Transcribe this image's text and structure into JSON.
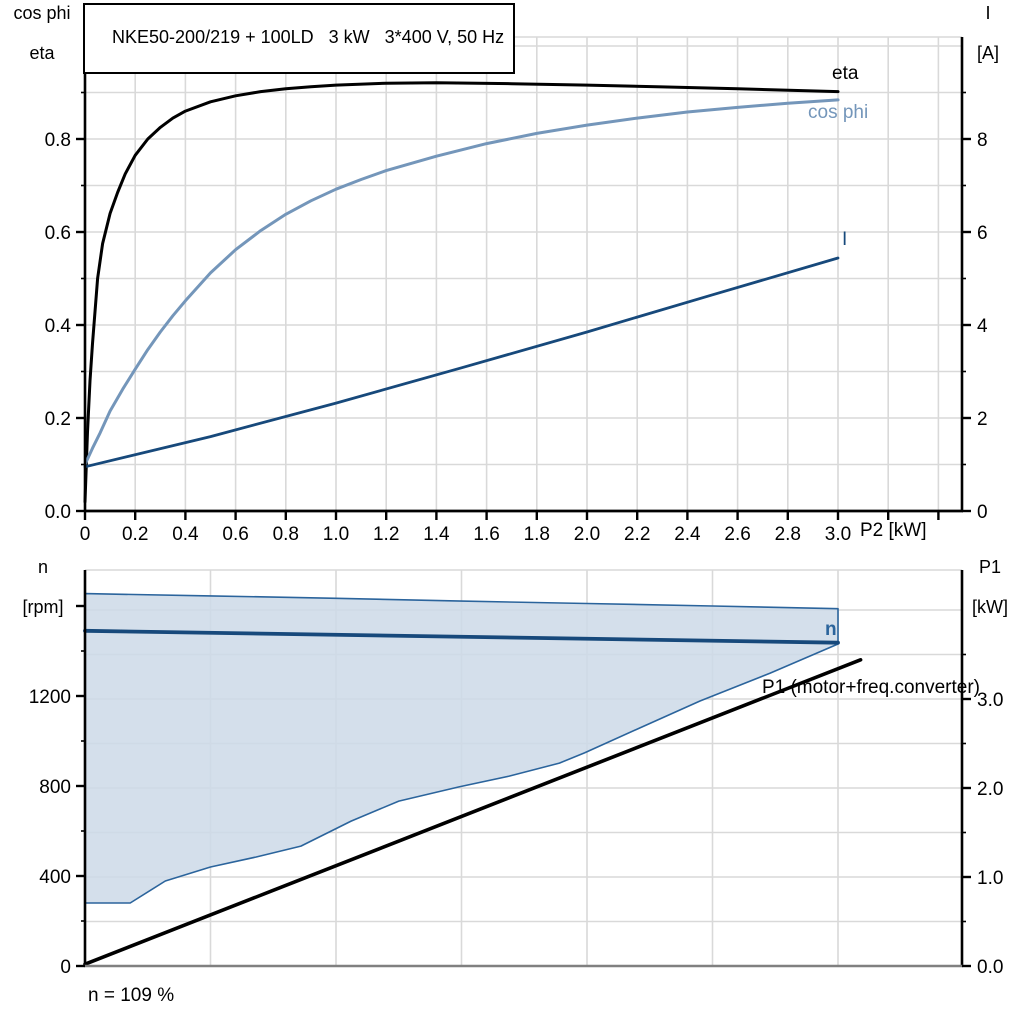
{
  "title": "NKE50-200/219 + 100LD   3 kW   3*400 V, 50 Hz",
  "colors": {
    "black": "#000000",
    "steel_blue": "#7496ba",
    "dark_blue": "#17497b",
    "mid_blue": "#2b649c",
    "band_fill": "#cdd9e7",
    "grid": "#d9d9d9",
    "axis_gray": "#808080"
  },
  "labels": {
    "top_left_line1": "cos phi",
    "top_left_line2": "eta",
    "top_right_line1": "I",
    "top_right_line2": "[A]",
    "x_axis": "P2 [kW]",
    "eta": "eta",
    "cos_phi": "cos phi",
    "current": "I",
    "bottom_left_line1": "n",
    "bottom_left_line2": "[rpm]",
    "bottom_right_line1": "P1",
    "bottom_right_line2": "[kW]",
    "n": "n",
    "p1": "P1 (motor+freq.converter)",
    "note": "n = 109 %"
  },
  "chart_data": [
    {
      "id": "top",
      "type": "line",
      "title": "NKE50-200/219 + 100LD   3 kW   3*400 V, 50 Hz",
      "xlabel": "P2 [kW]",
      "ylabel_left": "cos phi / eta",
      "ylabel_right": "I [A]",
      "xlim": [
        0,
        3.49
      ],
      "ylim_left": [
        0,
        0.98
      ],
      "ylim_right": [
        0,
        9.8
      ],
      "grid": true,
      "legend_position": "inline-right",
      "x_ticks": [
        0,
        0.2,
        0.4,
        0.6,
        0.8,
        1.0,
        1.2,
        1.4,
        1.6,
        1.8,
        2.0,
        2.2,
        2.4,
        2.6,
        2.8,
        3.0
      ],
      "x_tick_labels": [
        "0",
        "0.2",
        "0.4",
        "0.6",
        "0.8",
        "1.0",
        "1.2",
        "1.4",
        "1.6",
        "1.8",
        "2.0",
        "2.2",
        "2.4",
        "2.6",
        "2.8",
        "3.0"
      ],
      "x_ticks_unlabeled": [
        3.2,
        3.4
      ],
      "y_ticks_left": [
        0.0,
        0.2,
        0.4,
        0.6,
        0.8
      ],
      "y_tick_labels_left": [
        "0.0",
        "0.2",
        "0.4",
        "0.6",
        "0.8"
      ],
      "y_minor_left": [
        0.1,
        0.3,
        0.5,
        0.7,
        0.9
      ],
      "y_ticks_right": [
        0,
        2,
        4,
        6,
        8
      ],
      "y_tick_labels_right": [
        "0",
        "2",
        "4",
        "6",
        "8"
      ],
      "y_minor_right": [
        1,
        3,
        5,
        7,
        9
      ],
      "series": [
        {
          "name": "eta",
          "axis": "left",
          "color_key": "black",
          "width": 3,
          "x": [
            0,
            0.01,
            0.02,
            0.03,
            0.05,
            0.07,
            0.1,
            0.13,
            0.16,
            0.2,
            0.25,
            0.3,
            0.35,
            0.4,
            0.5,
            0.6,
            0.7,
            0.8,
            0.9,
            1.0,
            1.2,
            1.4,
            1.7,
            2.0,
            2.3,
            2.6,
            3.0
          ],
          "y": [
            0.02,
            0.17,
            0.28,
            0.36,
            0.5,
            0.575,
            0.64,
            0.685,
            0.725,
            0.765,
            0.8,
            0.825,
            0.845,
            0.86,
            0.88,
            0.893,
            0.902,
            0.908,
            0.9125,
            0.916,
            0.92,
            0.921,
            0.919,
            0.916,
            0.912,
            0.908,
            0.902
          ]
        },
        {
          "name": "cos phi",
          "axis": "left",
          "color_key": "steel_blue",
          "width": 3,
          "x": [
            0,
            0.03,
            0.06,
            0.1,
            0.15,
            0.2,
            0.25,
            0.3,
            0.35,
            0.4,
            0.5,
            0.6,
            0.7,
            0.8,
            0.9,
            1.0,
            1.1,
            1.2,
            1.4,
            1.6,
            1.8,
            2.0,
            2.2,
            2.4,
            2.6,
            2.8,
            3.0
          ],
          "y": [
            0.1,
            0.135,
            0.168,
            0.215,
            0.262,
            0.305,
            0.347,
            0.385,
            0.42,
            0.452,
            0.512,
            0.562,
            0.603,
            0.638,
            0.667,
            0.692,
            0.713,
            0.732,
            0.763,
            0.79,
            0.812,
            0.83,
            0.845,
            0.858,
            0.868,
            0.877,
            0.884
          ]
        },
        {
          "name": "I",
          "axis": "right",
          "color_key": "dark_blue",
          "width": 2.8,
          "x": [
            0,
            0.5,
            1.0,
            1.5,
            2.0,
            2.5,
            3.0
          ],
          "y": [
            0.95,
            1.6,
            2.32,
            3.08,
            3.85,
            4.65,
            5.44
          ]
        }
      ]
    },
    {
      "id": "bottom",
      "type": "line",
      "xlabel": "",
      "ylabel_left": "n [rpm]",
      "ylabel_right": "P1 [kW]",
      "xlim": [
        0,
        3.49
      ],
      "ylim_left": [
        0,
        1760
      ],
      "ylim_right": [
        0,
        4.45
      ],
      "grid": true,
      "annotation": "n = 109 %",
      "y_ticks_left": [
        0,
        400,
        800,
        1200
      ],
      "y_tick_labels_left": [
        "0",
        "400",
        "800",
        "1200"
      ],
      "y_major_unlabeled_left": [
        1600
      ],
      "y_minor_left": [
        200,
        600,
        1000,
        1400
      ],
      "y_ticks_right": [
        0,
        1,
        2,
        3
      ],
      "y_tick_labels_right": [
        "0.0",
        "1.0",
        "2.0",
        "3.0"
      ],
      "y_minor_right": [
        0.5,
        1.5,
        2.5,
        3.5
      ],
      "x_grid": [
        0.5,
        1.0,
        1.5,
        2.0,
        2.5,
        3.0
      ],
      "series": [
        {
          "name": "n",
          "axis": "left",
          "color_key": "dark_blue",
          "width": 3.8,
          "x": [
            0,
            3.0
          ],
          "y": [
            1490,
            1437
          ]
        },
        {
          "name": "P1 (motor+freq.converter)",
          "axis": "right",
          "color_key": "black",
          "width": 3.6,
          "x": [
            0,
            3.09
          ],
          "y": [
            0.02,
            3.44
          ]
        },
        {
          "name": "speed control range band",
          "type": "band",
          "axis": "left",
          "color_key": "mid_blue",
          "fill_key": "band_fill",
          "width": 1.6,
          "upper_x": [
            0,
            0.5,
            1.0,
            1.5,
            2.0,
            2.5,
            3.0
          ],
          "upper_y": [
            1655,
            1645,
            1634,
            1622,
            1611,
            1600,
            1588
          ],
          "lower_x": [
            0,
            0.18,
            0.32,
            0.5,
            0.68,
            0.86,
            1.06,
            1.25,
            1.49,
            1.69,
            1.89,
            1.99,
            2.21,
            2.45,
            2.73,
            3.0
          ],
          "lower_y": [
            280,
            280,
            378,
            440,
            484,
            533,
            644,
            733,
            796,
            844,
            902,
            947,
            1058,
            1178,
            1302,
            1431
          ]
        }
      ]
    }
  ]
}
